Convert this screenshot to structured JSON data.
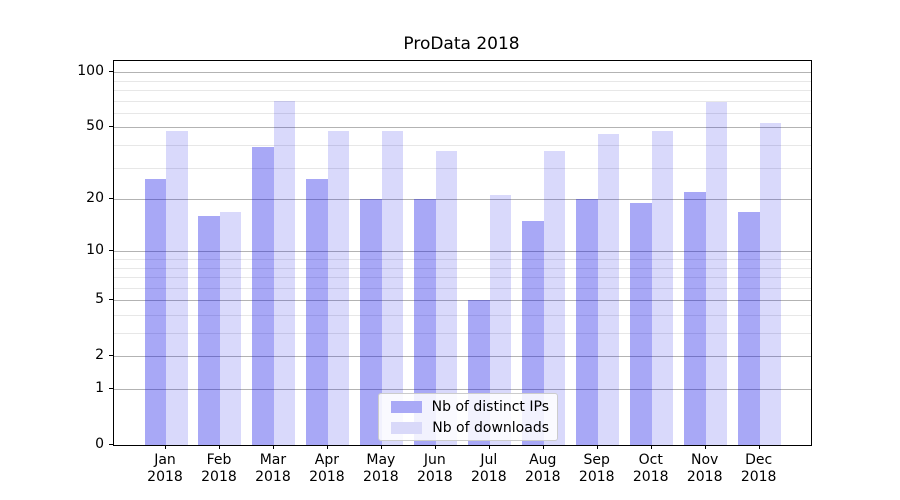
{
  "title": "ProData 2018",
  "chart_data": {
    "type": "bar",
    "title": "ProData 2018",
    "categories": [
      "Jan 2018",
      "Feb 2018",
      "Mar 2018",
      "Apr 2018",
      "May 2018",
      "Jun 2018",
      "Jul 2018",
      "Aug 2018",
      "Sep 2018",
      "Oct 2018",
      "Nov 2018",
      "Dec 2018"
    ],
    "series": [
      {
        "name": "Nb of distinct IPs",
        "color": "rgba(0,0,230,0.34)",
        "swatch": "#a9a9f6",
        "values": [
          26,
          16,
          39,
          26,
          20,
          20,
          5,
          15,
          20,
          19,
          22,
          17
        ]
      },
      {
        "name": "Nb of downloads",
        "color": "rgba(0,0,230,0.15)",
        "swatch": "#d9d9f9",
        "values": [
          48,
          17,
          70,
          48,
          48,
          37,
          21,
          37,
          46,
          48,
          69,
          53
        ]
      }
    ],
    "yscale": "log1p",
    "ylim": [
      0,
      116
    ],
    "yticks": [
      0,
      1,
      2,
      5,
      10,
      20,
      50,
      100
    ],
    "minor_gridlines": [
      3,
      4,
      6,
      7,
      8,
      9,
      30,
      40,
      60,
      70,
      80,
      90
    ],
    "grid": "on",
    "legend_position": "lower center",
    "xlabel": "",
    "ylabel": ""
  },
  "legend": {
    "items": [
      {
        "label": "Nb of distinct IPs"
      },
      {
        "label": "Nb of downloads"
      }
    ]
  }
}
